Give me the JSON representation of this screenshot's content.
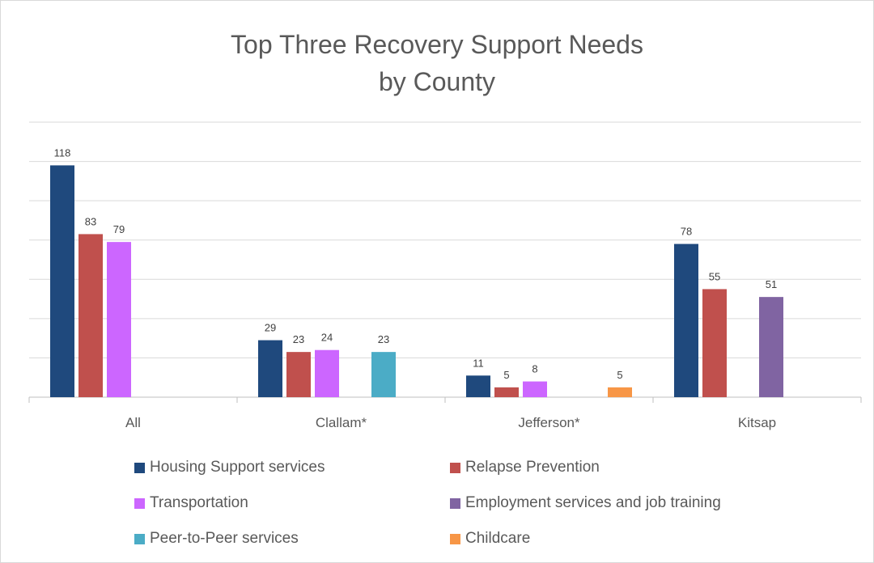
{
  "chart_data": {
    "type": "bar",
    "title": [
      "Top Three Recovery Support Needs",
      "by County"
    ],
    "categories": [
      "All",
      "Clallam*",
      "Jefferson*",
      "Kitsap"
    ],
    "series": [
      {
        "name": "Housing Support services",
        "color": "#1f497d",
        "values": [
          118,
          29,
          11,
          78
        ]
      },
      {
        "name": "Relapse Prevention",
        "color": "#c0504d",
        "values": [
          83,
          23,
          5,
          55
        ]
      },
      {
        "name": "Transportation",
        "color": "#cc66ff",
        "values": [
          79,
          24,
          8,
          null
        ]
      },
      {
        "name": "Employment services and job training",
        "color": "#8064a2",
        "values": [
          null,
          null,
          null,
          51
        ]
      },
      {
        "name": "Peer-to-Peer services",
        "color": "#4bacc6",
        "values": [
          null,
          23,
          null,
          null
        ]
      },
      {
        "name": "Childcare",
        "color": "#f79646",
        "values": [
          null,
          null,
          5,
          null
        ]
      }
    ],
    "ylim": [
      0,
      140
    ],
    "y_axis_labels_shown": false,
    "grid": true,
    "legend_position": "bottom"
  }
}
